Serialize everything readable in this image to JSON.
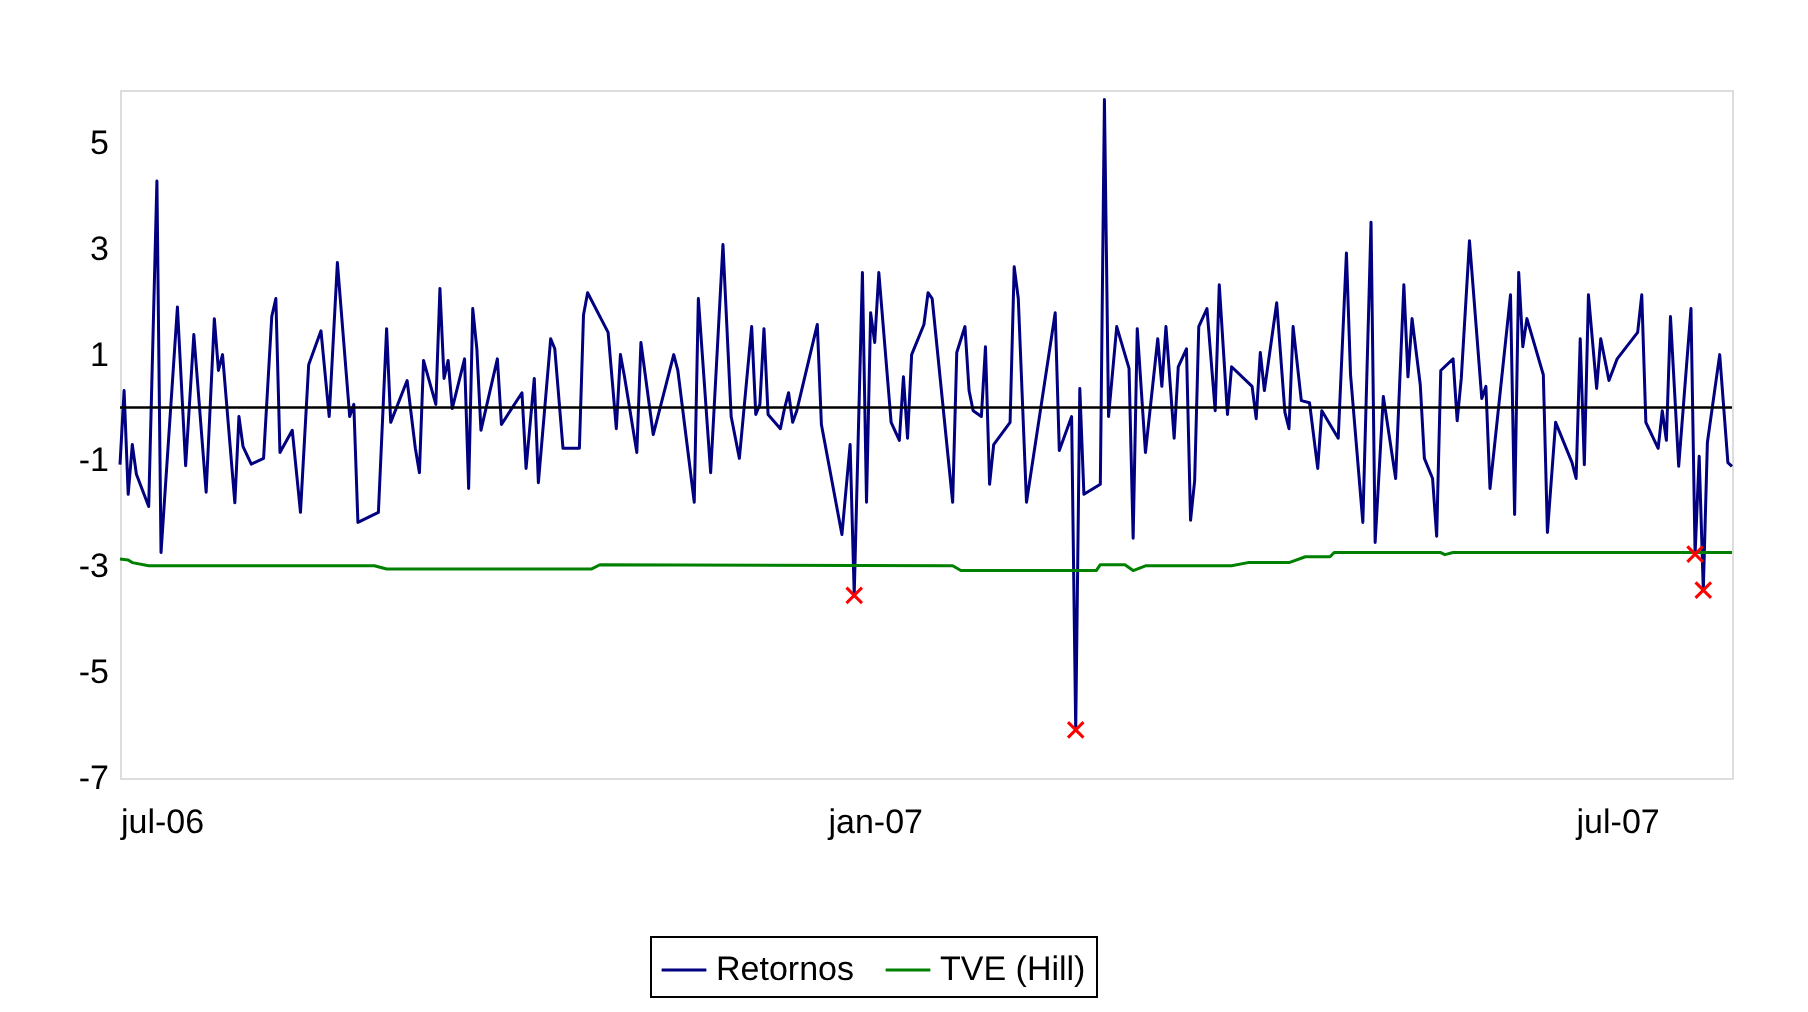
{
  "chart_data": {
    "type": "line",
    "xlim": [
      "2006-07-01",
      "2007-07-29"
    ],
    "xticks": [
      {
        "value": "2006-07-01",
        "label": "jul-06"
      },
      {
        "value": "2007-01-01",
        "label": "jan-07"
      },
      {
        "value": "2007-07-01",
        "label": "jul-07"
      }
    ],
    "ylim": [
      -7,
      6
    ],
    "yticks": [
      5,
      3,
      1,
      -1,
      -3,
      -5,
      -7
    ],
    "grid": false,
    "legend": "bottom",
    "line_style": "solid",
    "ref_lines": [
      {
        "axis": "y",
        "value": 0,
        "color": "#000000"
      }
    ],
    "series": [
      {
        "name": "Retornos",
        "color": "#000080",
        "type": "line",
        "marker": "none",
        "x": [
          "2006-07-01",
          "2006-07-02",
          "2006-07-03",
          "2006-07-04",
          "2006-07-05",
          "2006-07-08",
          "2006-07-10",
          "2006-07-11",
          "2006-07-15",
          "2006-07-17",
          "2006-07-19",
          "2006-07-22",
          "2006-07-24",
          "2006-07-25",
          "2006-07-26",
          "2006-07-29",
          "2006-07-30",
          "2006-07-31",
          "2006-08-02",
          "2006-08-05",
          "2006-08-07",
          "2006-08-08",
          "2006-08-09",
          "2006-08-12",
          "2006-08-14",
          "2006-08-16",
          "2006-08-19",
          "2006-08-21",
          "2006-08-23",
          "2006-08-26",
          "2006-08-27",
          "2006-08-28",
          "2006-09-02",
          "2006-09-04",
          "2006-09-05",
          "2006-09-09",
          "2006-09-11",
          "2006-09-12",
          "2006-09-13",
          "2006-09-16",
          "2006-09-17",
          "2006-09-18",
          "2006-09-19",
          "2006-09-20",
          "2006-09-23",
          "2006-09-24",
          "2006-09-25",
          "2006-09-26",
          "2006-09-27",
          "2006-10-01",
          "2006-10-02",
          "2006-10-07",
          "2006-10-08",
          "2006-10-10",
          "2006-10-11",
          "2006-10-14",
          "2006-10-15",
          "2006-10-17",
          "2006-10-21",
          "2006-10-22",
          "2006-10-23",
          "2006-10-28",
          "2006-10-30",
          "2006-10-31",
          "2006-11-01",
          "2006-11-04",
          "2006-11-05",
          "2006-11-08",
          "2006-11-13",
          "2006-11-14",
          "2006-11-18",
          "2006-11-19",
          "2006-11-22",
          "2006-11-25",
          "2006-11-27",
          "2006-11-29",
          "2006-12-02",
          "2006-12-03",
          "2006-12-04",
          "2006-12-05",
          "2006-12-06",
          "2006-12-09",
          "2006-12-10",
          "2006-12-11",
          "2006-12-12",
          "2006-12-13",
          "2006-12-18",
          "2006-12-19",
          "2006-12-24",
          "2006-12-26",
          "2006-12-27",
          "2006-12-29",
          "2006-12-30",
          "2006-12-31",
          "2007-01-01",
          "2007-01-02",
          "2007-01-05",
          "2007-01-07",
          "2007-01-08",
          "2007-01-09",
          "2007-01-10",
          "2007-01-13",
          "2007-01-14",
          "2007-01-15",
          "2007-01-20",
          "2007-01-21",
          "2007-01-23",
          "2007-01-24",
          "2007-01-25",
          "2007-01-27",
          "2007-01-28",
          "2007-01-29",
          "2007-01-30",
          "2007-02-03",
          "2007-02-04",
          "2007-02-05",
          "2007-02-07",
          "2007-02-14",
          "2007-02-15",
          "2007-02-18",
          "2007-02-19",
          "2007-02-20",
          "2007-02-21",
          "2007-02-25",
          "2007-02-26",
          "2007-02-27",
          "2007-03-01",
          "2007-03-04",
          "2007-03-05",
          "2007-03-06",
          "2007-03-08",
          "2007-03-11",
          "2007-03-12",
          "2007-03-13",
          "2007-03-15",
          "2007-03-16",
          "2007-03-18",
          "2007-03-19",
          "2007-03-20",
          "2007-03-21",
          "2007-03-23",
          "2007-03-25",
          "2007-03-26",
          "2007-03-28",
          "2007-03-29",
          "2007-04-03",
          "2007-04-04",
          "2007-04-05",
          "2007-04-06",
          "2007-04-09",
          "2007-04-11",
          "2007-04-12",
          "2007-04-13",
          "2007-04-15",
          "2007-04-17",
          "2007-04-19",
          "2007-04-20",
          "2007-04-24",
          "2007-04-26",
          "2007-04-27",
          "2007-04-30",
          "2007-05-02",
          "2007-05-03",
          "2007-05-05",
          "2007-05-08",
          "2007-05-10",
          "2007-05-11",
          "2007-05-12",
          "2007-05-14",
          "2007-05-15",
          "2007-05-17",
          "2007-05-18",
          "2007-05-19",
          "2007-05-22",
          "2007-05-23",
          "2007-05-24",
          "2007-05-26",
          "2007-05-29",
          "2007-05-30",
          "2007-05-31",
          "2007-06-05",
          "2007-06-06",
          "2007-06-07",
          "2007-06-08",
          "2007-06-09",
          "2007-06-13",
          "2007-06-14",
          "2007-06-16",
          "2007-06-20",
          "2007-06-21",
          "2007-06-22",
          "2007-06-23",
          "2007-06-24",
          "2007-06-26",
          "2007-06-27",
          "2007-06-29",
          "2007-07-01",
          "2007-07-06",
          "2007-07-07",
          "2007-07-08",
          "2007-07-11",
          "2007-07-12",
          "2007-07-13",
          "2007-07-14",
          "2007-07-16",
          "2007-07-19",
          "2007-07-20",
          "2007-07-21",
          "2007-07-22",
          "2007-07-23",
          "2007-07-26",
          "2007-07-28",
          "2007-07-29"
        ],
        "values": [
          -1.08,
          0.32,
          -1.64,
          -0.7,
          -1.26,
          -1.87,
          4.28,
          -2.74,
          1.9,
          -1.1,
          1.38,
          -1.6,
          1.68,
          0.7,
          1.0,
          -1.8,
          -0.17,
          -0.74,
          -1.07,
          -0.96,
          1.72,
          2.06,
          -0.85,
          -0.43,
          -1.98,
          0.81,
          1.45,
          -0.17,
          2.74,
          -0.17,
          0.06,
          -2.17,
          -1.98,
          1.49,
          -0.28,
          0.51,
          -0.77,
          -1.23,
          0.89,
          0.06,
          2.25,
          0.55,
          0.89,
          -0.02,
          0.92,
          -1.53,
          1.87,
          1.11,
          -0.43,
          0.92,
          -0.32,
          0.28,
          -1.15,
          0.55,
          -1.42,
          1.3,
          1.11,
          -0.77,
          -0.77,
          1.75,
          2.17,
          1.42,
          -0.4,
          1.0,
          0.58,
          -0.85,
          1.23,
          -0.51,
          1.0,
          0.7,
          -1.79,
          2.06,
          -1.23,
          3.08,
          -0.17,
          -0.96,
          1.53,
          -0.13,
          0.06,
          1.49,
          -0.13,
          -0.4,
          -0.02,
          0.28,
          -0.28,
          -0.06,
          1.57,
          -0.32,
          -2.4,
          -0.7,
          -3.53,
          2.55,
          -1.79,
          1.79,
          1.23,
          2.55,
          -0.28,
          -0.62,
          0.58,
          -0.58,
          1.0,
          1.57,
          2.17,
          2.06,
          -1.79,
          1.04,
          1.53,
          0.32,
          -0.06,
          -0.17,
          1.15,
          -1.45,
          -0.7,
          -0.28,
          2.66,
          2.06,
          -1.79,
          1.79,
          -0.81,
          -0.17,
          -6.09,
          0.36,
          -1.64,
          -1.45,
          5.82,
          -0.17,
          1.53,
          0.74,
          -2.47,
          1.49,
          -0.85,
          1.3,
          0.4,
          1.53,
          -0.58,
          0.77,
          1.11,
          -2.13,
          -1.38,
          1.53,
          1.87,
          -0.06,
          2.32,
          -0.13,
          0.77,
          0.4,
          -0.21,
          1.04,
          0.32,
          1.98,
          -0.09,
          -0.4,
          1.53,
          0.13,
          0.09,
          -1.15,
          -0.06,
          -0.58,
          2.92,
          0.62,
          -2.17,
          3.5,
          -2.55,
          0.21,
          -1.34,
          2.32,
          0.58,
          1.68,
          0.43,
          -0.96,
          -1.34,
          -2.43,
          0.7,
          0.92,
          -0.25,
          0.55,
          3.15,
          0.17,
          0.4,
          -1.53,
          2.13,
          -2.02,
          2.55,
          1.15,
          1.68,
          0.62,
          -2.36,
          -0.28,
          -1.04,
          -1.34,
          1.3,
          -1.08,
          2.13,
          0.36,
          1.3,
          0.51,
          0.92,
          1.42,
          2.13,
          -0.28,
          -0.77,
          -0.06,
          -0.62,
          1.72,
          -1.11,
          1.87,
          -2.77,
          -0.92,
          -3.45,
          -0.66,
          1.0,
          -1.04,
          -1.11
        ]
      },
      {
        "name": "TVE (Hill)",
        "color": "#008000",
        "type": "line",
        "marker": "none",
        "x": [
          "2006-07-01",
          "2006-07-03",
          "2006-07-04",
          "2006-07-08",
          "2006-09-01",
          "2006-09-04",
          "2006-10-24",
          "2006-10-26",
          "2007-01-20",
          "2007-01-22",
          "2007-02-24",
          "2007-02-25",
          "2007-03-03",
          "2007-03-05",
          "2007-03-08",
          "2007-03-29",
          "2007-04-02",
          "2007-04-12",
          "2007-04-16",
          "2007-04-22",
          "2007-04-23",
          "2007-05-19",
          "2007-05-20",
          "2007-05-22",
          "2007-07-29"
        ],
        "values": [
          -2.86,
          -2.88,
          -2.93,
          -2.99,
          -2.99,
          -3.05,
          -3.05,
          -2.97,
          -2.99,
          -3.08,
          -3.08,
          -2.97,
          -2.97,
          -3.08,
          -2.99,
          -2.99,
          -2.93,
          -2.93,
          -2.82,
          -2.82,
          -2.74,
          -2.74,
          -2.78,
          -2.74,
          -2.74
        ]
      },
      {
        "color": "#ff0000",
        "type": "scatter",
        "marker": "cross",
        "x": [
          "2006-12-27",
          "2007-02-19",
          "2007-07-20",
          "2007-07-22"
        ],
        "values": [
          -3.55,
          -6.09,
          -2.77,
          -3.45
        ]
      }
    ]
  }
}
